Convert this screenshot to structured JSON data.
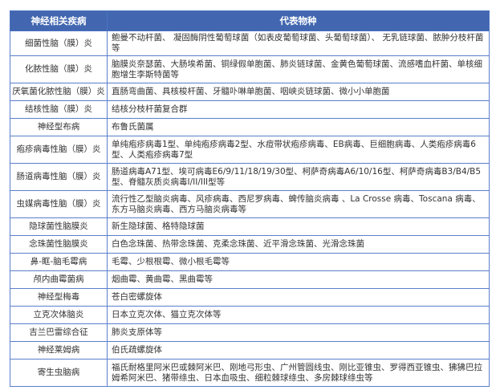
{
  "table": {
    "headers": [
      "神经相关疾病",
      "代表物种"
    ],
    "header_color": "#4267b0",
    "border_color": "#5a7fcc",
    "rows": [
      {
        "disease": "细菌性脑（膜）炎",
        "species": "鲍曼不动杆菌、 凝固酶阴性葡萄球菌（如表皮葡萄球菌、头葡萄球菌）、 无乳链球菌、脓肿分枝杆菌等"
      },
      {
        "disease": "化脓性脑（膜）炎",
        "species": "脑膜炎奈瑟菌、大肠埃希菌、铜绿假单胞菌、肺炎链球菌、金黄色葡萄球菌、流感嗜血杆菌、单核细胞增生李斯特菌等"
      },
      {
        "disease": "厌氧菌化脓性脑（膜）炎",
        "species": "直肠弯曲菌、具核梭杆菌、牙髓卟啉单胞菌、咽峡炎链球菌、微小小单胞菌"
      },
      {
        "disease": "结核性脑（膜）炎",
        "species": "结核分枝杆菌复合群"
      },
      {
        "disease": "神经型布病",
        "species": "布鲁氏菌属"
      },
      {
        "disease": "疱疹病毒性脑（膜）炎",
        "species": "单纯疱疹病毒1型、单纯疱疹病毒2型、水痘带状疱疹病毒、EB病毒、巨细胞病毒、人类疱疹病毒6型、人类疱疹病毒7型"
      },
      {
        "disease": "肠道病毒性脑（膜）炎",
        "species": "肠道病毒A71型、埃可病毒E6/9/11/18/19/30型、柯萨奇病毒A6/10/16型、柯萨奇病毒B3/B4/B5型、脊髓灰质炎病毒I/II/III型等"
      },
      {
        "disease": "虫媒病毒性脑（膜）炎",
        "species": "流行性乙型脑炎病毒、风疹病毒、西尼罗病毒、蜱传脑炎病毒 、La Crosse 病毒、Toscana 病毒、东方马脑炎病毒、西方马脑炎病毒等"
      },
      {
        "disease": "隐球菌性脑膜炎",
        "species": "新生隐球菌、格特隐球菌"
      },
      {
        "disease": "念珠菌性脑膜炎",
        "species": "白色念珠菌、热带念珠菌、克柔念珠菌、近平滑念珠菌、光滑念珠菌"
      },
      {
        "disease": "鼻-眶-脑毛霉病",
        "species": "毛霉、少根根霉、微小根毛霉等"
      },
      {
        "disease": "颅内曲霉菌病",
        "species": "烟曲霉、黄曲霉、黑曲霉等"
      },
      {
        "disease": "神经型梅毒",
        "species": "苍白密螺旋体"
      },
      {
        "disease": "立克次体脑炎",
        "species": "日本立克次体、猫立克次体等"
      },
      {
        "disease": "吉兰巴雷综合征",
        "species": "肺炎支原体等"
      },
      {
        "disease": "神经莱姆病",
        "species": "伯氏疏螺旋体"
      },
      {
        "disease": "寄生虫脑病",
        "species": "福氏耐格里阿米巴或棘阿米巴、刚地弓形虫、广州管圆线虫、刚比亚锥虫、罗得西亚锥虫、狒狒巴拉姆希阿米巴、猪带绦虫、日本血吸虫、细粒棘球绦虫、多房棘球绦虫等"
      }
    ]
  }
}
